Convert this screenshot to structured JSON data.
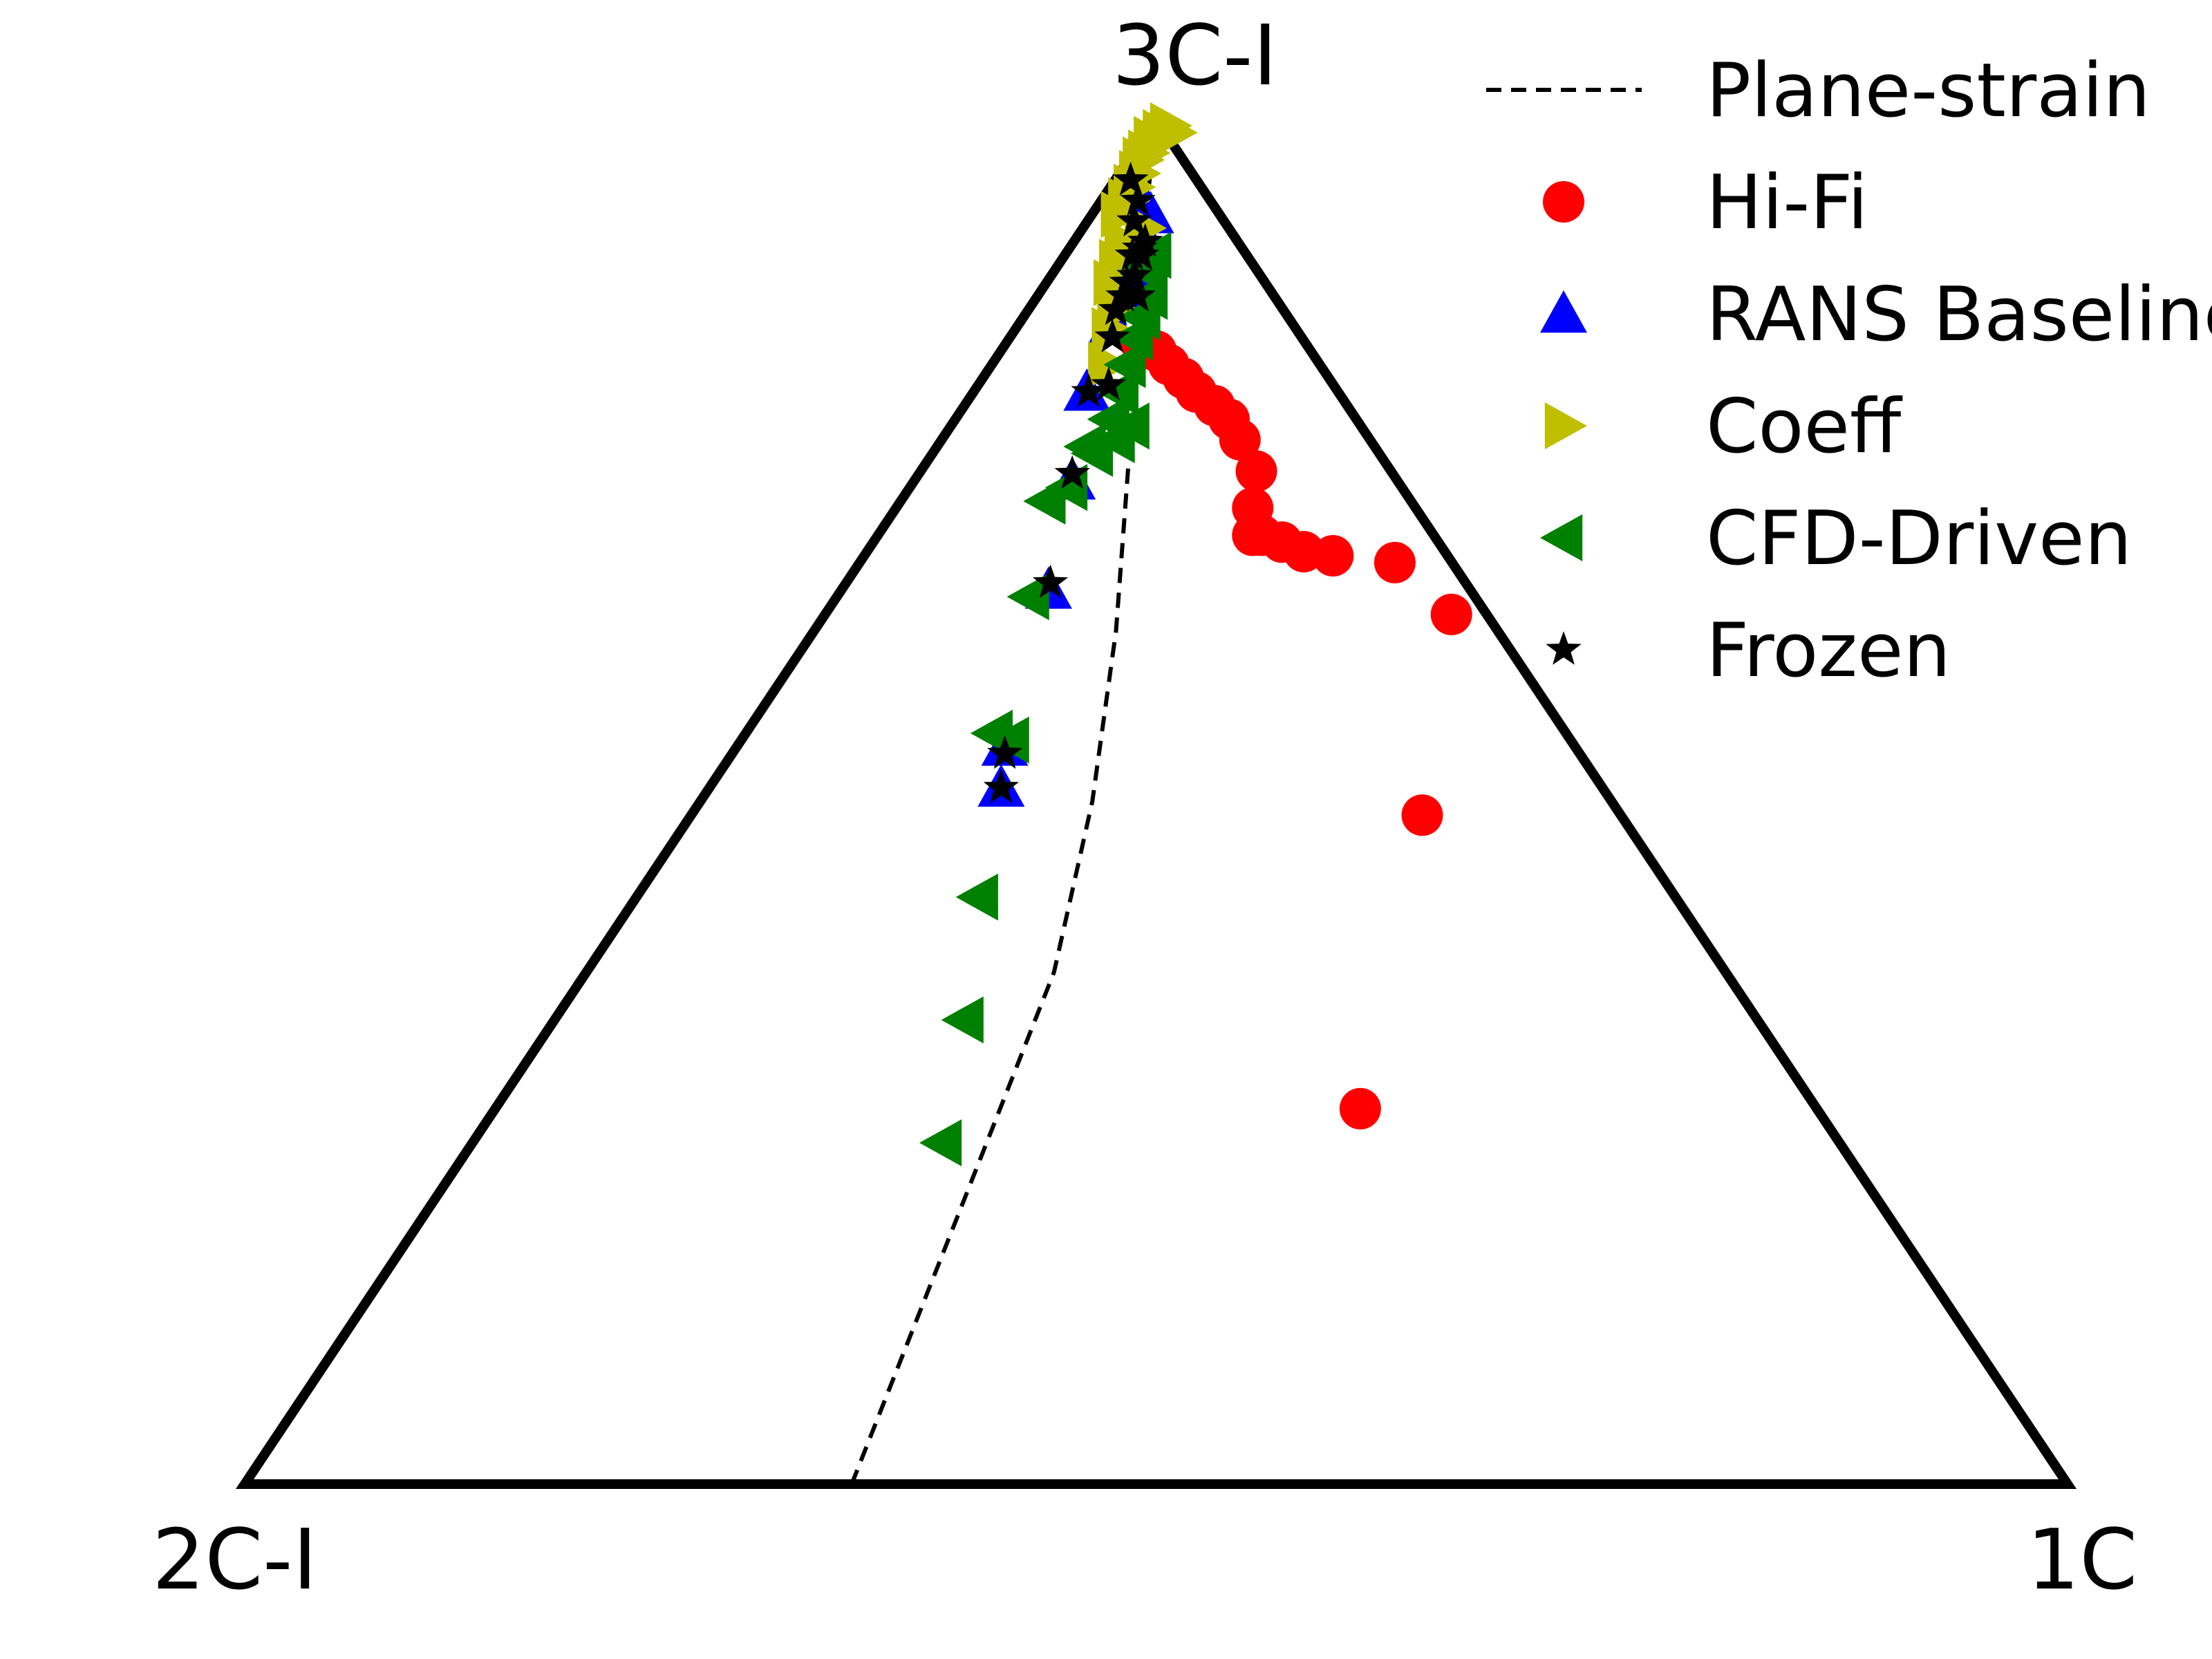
{
  "chart_data": {
    "type": "scatter",
    "title": "",
    "vertex_labels": {
      "top": "3C-I",
      "left": "2C-I",
      "right": "1C"
    },
    "coordinate_note": "",
    "legend": {
      "placement": "top-right"
    },
    "series": [
      {
        "name": "Plane-strain",
        "kind": "line",
        "style": "dashed",
        "color": "#000000",
        "points": [
          [
            0.333,
            0.0
          ],
          [
            0.407,
            0.25
          ],
          [
            0.444,
            0.375
          ],
          [
            0.465,
            0.5
          ],
          [
            0.478,
            0.625
          ],
          [
            0.485,
            0.75
          ],
          [
            0.49,
            0.875
          ],
          [
            0.5,
            1.0
          ]
        ]
      },
      {
        "name": "Hi-Fi",
        "kind": "scatter",
        "marker": "circle",
        "color": "#ff0000",
        "points": [
          [
            0.612,
            0.275
          ],
          [
            0.646,
            0.49
          ],
          [
            0.662,
            0.637
          ],
          [
            0.631,
            0.675
          ],
          [
            0.597,
            0.68
          ],
          [
            0.581,
            0.683
          ],
          [
            0.569,
            0.69
          ],
          [
            0.558,
            0.695
          ],
          [
            0.553,
            0.695
          ],
          [
            0.553,
            0.715
          ],
          [
            0.555,
            0.742
          ],
          [
            0.546,
            0.765
          ],
          [
            0.54,
            0.78
          ],
          [
            0.532,
            0.79
          ],
          [
            0.522,
            0.8
          ],
          [
            0.515,
            0.81
          ],
          [
            0.507,
            0.82
          ],
          [
            0.5,
            0.83
          ],
          [
            0.492,
            0.835
          ]
        ]
      },
      {
        "name": "RANS Baseline",
        "kind": "scatter",
        "marker": "triangle-up",
        "color": "#0000ff",
        "points": [
          [
            0.415,
            0.51
          ],
          [
            0.417,
            0.54
          ],
          [
            0.441,
            0.655
          ],
          [
            0.454,
            0.735
          ],
          [
            0.462,
            0.8
          ],
          [
            0.476,
            0.85
          ],
          [
            0.486,
            0.87
          ],
          [
            0.49,
            0.9
          ],
          [
            0.495,
            0.91
          ],
          [
            0.493,
            0.915
          ],
          [
            0.489,
            0.89
          ],
          [
            0.48,
            0.87
          ],
          [
            0.497,
            0.93
          ],
          [
            0.49,
            0.945
          ]
        ]
      },
      {
        "name": "Coeff",
        "kind": "scatter",
        "marker": "triangle-right",
        "color": "#bfbf00",
        "points": [
          [
            0.473,
            0.82
          ],
          [
            0.475,
            0.845
          ],
          [
            0.478,
            0.86
          ],
          [
            0.481,
            0.87
          ],
          [
            0.476,
            0.88
          ],
          [
            0.479,
            0.895
          ],
          [
            0.482,
            0.91
          ],
          [
            0.48,
            0.93
          ],
          [
            0.484,
            0.94
          ],
          [
            0.487,
            0.95
          ],
          [
            0.49,
            0.96
          ],
          [
            0.492,
            0.97
          ],
          [
            0.495,
            0.975
          ],
          [
            0.498,
            0.985
          ],
          [
            0.503,
            0.99
          ],
          [
            0.507,
            0.995
          ],
          [
            0.51,
            0.99
          ],
          [
            0.493,
            0.92
          ]
        ]
      },
      {
        "name": "CFD-Driven",
        "kind": "scatter",
        "marker": "triangle-left",
        "color": "#008000",
        "points": [
          [
            0.383,
            0.25
          ],
          [
            0.395,
            0.34
          ],
          [
            0.403,
            0.43
          ],
          [
            0.411,
            0.55
          ],
          [
            0.42,
            0.545
          ],
          [
            0.431,
            0.65
          ],
          [
            0.44,
            0.72
          ],
          [
            0.452,
            0.73
          ],
          [
            0.462,
            0.76
          ],
          [
            0.466,
            0.755
          ],
          [
            0.475,
            0.78
          ],
          [
            0.48,
            0.8
          ],
          [
            0.484,
            0.82
          ],
          [
            0.488,
            0.84
          ],
          [
            0.492,
            0.855
          ],
          [
            0.496,
            0.87
          ],
          [
            0.494,
            0.89
          ],
          [
            0.498,
            0.9
          ],
          [
            0.478,
            0.765
          ],
          [
            0.486,
            0.775
          ]
        ]
      },
      {
        "name": "Frozen",
        "kind": "scatter",
        "marker": "star",
        "color": "#000000",
        "points": [
          [
            0.415,
            0.51
          ],
          [
            0.417,
            0.535
          ],
          [
            0.442,
            0.66
          ],
          [
            0.454,
            0.74
          ],
          [
            0.463,
            0.8
          ],
          [
            0.474,
            0.805
          ],
          [
            0.476,
            0.84
          ],
          [
            0.478,
            0.86
          ],
          [
            0.482,
            0.87
          ],
          [
            0.484,
            0.88
          ],
          [
            0.488,
            0.885
          ],
          [
            0.49,
            0.87
          ],
          [
            0.487,
            0.9
          ],
          [
            0.491,
            0.905
          ],
          [
            0.494,
            0.91
          ],
          [
            0.488,
            0.925
          ],
          [
            0.49,
            0.94
          ],
          [
            0.486,
            0.955
          ],
          [
            0.492,
            0.9
          ]
        ]
      }
    ]
  }
}
